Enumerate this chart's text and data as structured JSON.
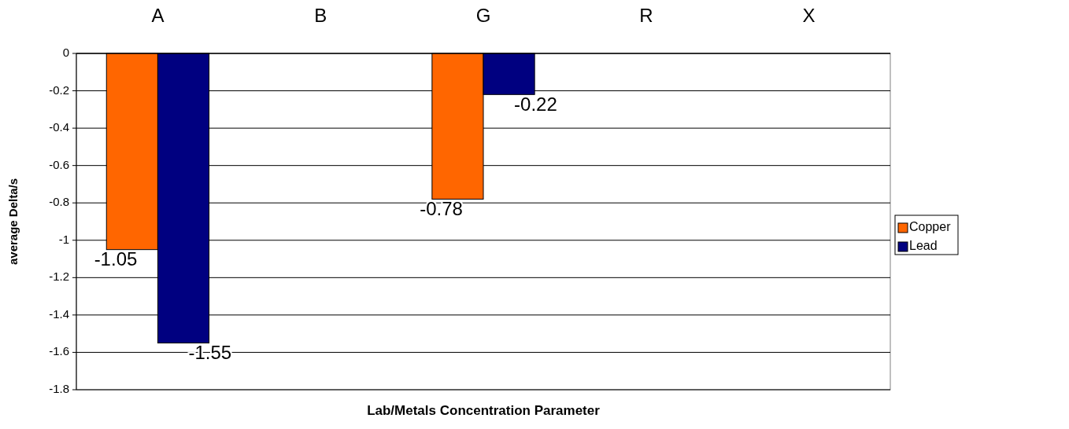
{
  "chart_data": {
    "type": "bar",
    "xlabel": "Lab/Metals Concentration Parameter",
    "ylabel": "average Delta/s",
    "categories": [
      "A",
      "B",
      "G",
      "R",
      "X"
    ],
    "series": [
      {
        "name": "Copper",
        "color": "#ff6600",
        "values": [
          -1.05,
          null,
          -0.78,
          null,
          null
        ]
      },
      {
        "name": "Lead",
        "color": "#000080",
        "values": [
          -1.55,
          null,
          -0.22,
          null,
          null
        ]
      }
    ],
    "ylim": [
      -1.8,
      0
    ],
    "yticks": [
      -1.8,
      -1.6,
      -1.4,
      -1.2,
      -1,
      -0.8,
      -0.6,
      -0.4,
      -0.2,
      0
    ],
    "grid": "y",
    "legend": "right",
    "data_labels": true
  }
}
